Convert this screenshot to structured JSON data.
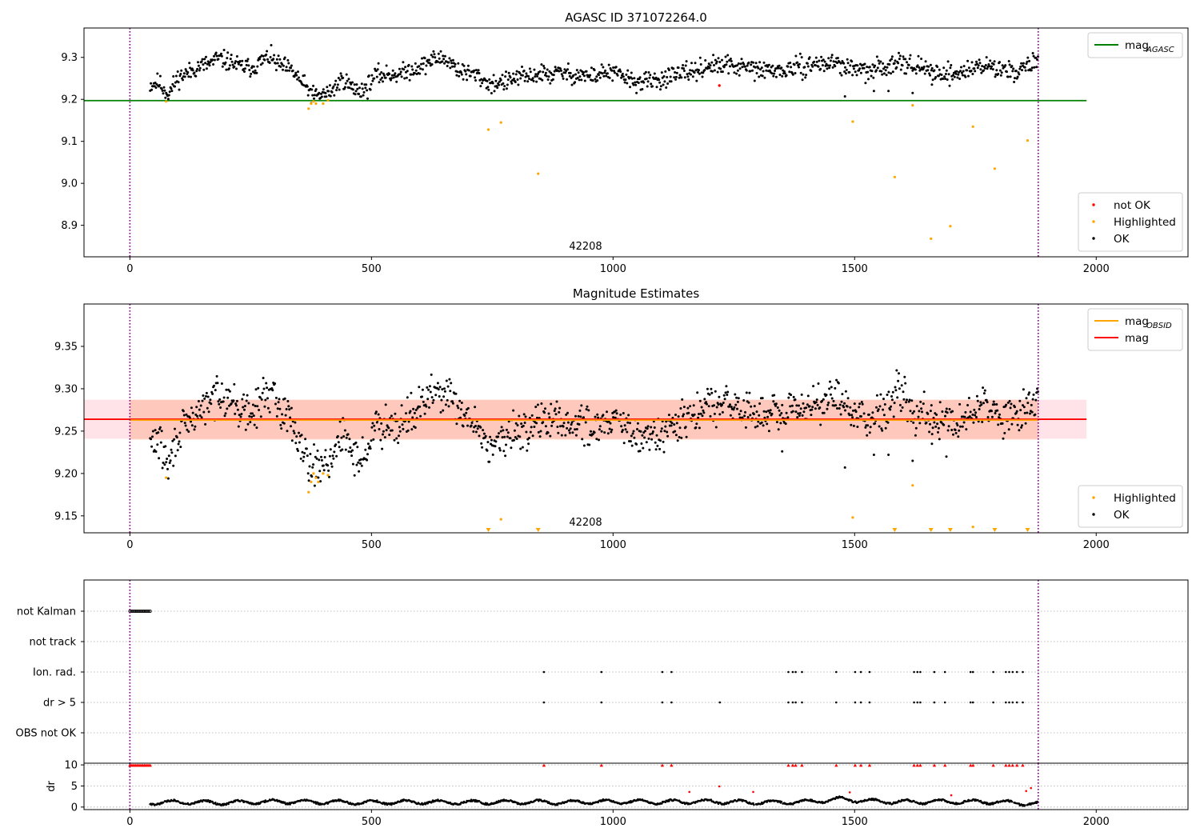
{
  "figure": {
    "colors": {
      "ok": "#000000",
      "highlighted": "#ffa500",
      "not_ok": "#ff0000",
      "mag_agasc_line": "#008000",
      "mag_obsid_line": "#ffa500",
      "mag_line": "#ff0000",
      "boundary": "#800080"
    }
  },
  "chart_data": [
    {
      "type": "scatter",
      "title": "AGASC ID 371072264.0",
      "xlabel": "",
      "ylabel": "",
      "xlim": [
        -95,
        2190
      ],
      "ylim": [
        8.825,
        9.37
      ],
      "xticks": [
        0,
        500,
        1000,
        1500,
        2000
      ],
      "yticks": [
        8.9,
        9.0,
        9.1,
        9.2,
        9.3
      ],
      "xtick_labels": [
        "0",
        "500",
        "1000",
        "1500",
        "2000"
      ],
      "ytick_labels": [
        "8.9",
        "9.0",
        "9.1",
        "9.2",
        "9.3"
      ],
      "obsid_label": "42208",
      "obs_boundaries": [
        0,
        1880
      ],
      "reference_lines": [
        {
          "name": "mag_AGASC",
          "label_main": "mag",
          "label_sub": "AGASC",
          "y": 9.197,
          "x": [
            -95,
            1980
          ]
        }
      ],
      "series": [
        {
          "name": "not OK",
          "color": "#ff0000",
          "points": [
            [
              1220,
              9.233
            ]
          ]
        },
        {
          "name": "Highlighted",
          "color": "#ffa500",
          "points": [
            [
              75,
              9.195
            ],
            [
              370,
              9.178
            ],
            [
              375,
              9.19
            ],
            [
              380,
              9.195
            ],
            [
              385,
              9.19
            ],
            [
              400,
              9.19
            ],
            [
              410,
              9.198
            ],
            [
              742,
              9.128
            ],
            [
              768,
              9.145
            ],
            [
              845,
              9.023
            ],
            [
              1496,
              9.147
            ],
            [
              1583,
              9.015
            ],
            [
              1620,
              9.186
            ],
            [
              1658,
              8.868
            ],
            [
              1698,
              8.898
            ],
            [
              1745,
              9.135
            ],
            [
              1790,
              9.035
            ],
            [
              1858,
              9.102
            ]
          ]
        },
        {
          "name": "OK",
          "color": "#000000",
          "points": []
        }
      ],
      "ok_trend": [
        [
          42,
          9.235
        ],
        [
          60,
          9.238
        ],
        [
          80,
          9.215
        ],
        [
          100,
          9.25
        ],
        [
          120,
          9.265
        ],
        [
          150,
          9.28
        ],
        [
          180,
          9.295
        ],
        [
          210,
          9.29
        ],
        [
          230,
          9.275
        ],
        [
          260,
          9.28
        ],
        [
          290,
          9.302
        ],
        [
          310,
          9.28
        ],
        [
          340,
          9.265
        ],
        [
          360,
          9.232
        ],
        [
          380,
          9.21
        ],
        [
          410,
          9.212
        ],
        [
          440,
          9.25
        ],
        [
          460,
          9.225
        ],
        [
          490,
          9.225
        ],
        [
          510,
          9.26
        ],
        [
          540,
          9.258
        ],
        [
          580,
          9.268
        ],
        [
          620,
          9.29
        ],
        [
          650,
          9.3
        ],
        [
          680,
          9.27
        ],
        [
          720,
          9.255
        ],
        [
          750,
          9.235
        ],
        [
          800,
          9.25
        ],
        [
          850,
          9.26
        ],
        [
          900,
          9.262
        ],
        [
          950,
          9.255
        ],
        [
          1000,
          9.265
        ],
        [
          1030,
          9.248
        ],
        [
          1060,
          9.24
        ],
        [
          1100,
          9.248
        ],
        [
          1150,
          9.262
        ],
        [
          1200,
          9.28
        ],
        [
          1250,
          9.28
        ],
        [
          1300,
          9.27
        ],
        [
          1350,
          9.268
        ],
        [
          1400,
          9.28
        ],
        [
          1450,
          9.288
        ],
        [
          1480,
          9.28
        ],
        [
          1520,
          9.265
        ],
        [
          1560,
          9.275
        ],
        [
          1590,
          9.295
        ],
        [
          1630,
          9.275
        ],
        [
          1680,
          9.262
        ],
        [
          1720,
          9.262
        ],
        [
          1760,
          9.282
        ],
        [
          1800,
          9.272
        ],
        [
          1840,
          9.268
        ],
        [
          1880,
          9.292
        ]
      ],
      "ok_spread": 0.011,
      "ok_outliers": [
        [
          1480,
          9.207
        ],
        [
          1540,
          9.22
        ],
        [
          1570,
          9.22
        ],
        [
          1620,
          9.215
        ],
        [
          1660,
          9.235
        ]
      ],
      "legends": [
        {
          "position": "upper-right",
          "entries": [
            {
              "kind": "line",
              "label_main": "mag",
              "label_sub": "AGASC",
              "color": "#008000"
            }
          ]
        },
        {
          "position": "lower-right",
          "entries": [
            {
              "kind": "point",
              "label": "not OK",
              "color": "#ff0000"
            },
            {
              "kind": "point",
              "label": "Highlighted",
              "color": "#ffa500"
            },
            {
              "kind": "point",
              "label": "OK",
              "color": "#000000"
            }
          ]
        }
      ],
      "grid": false
    },
    {
      "type": "scatter",
      "title": "Magnitude Estimates",
      "xlabel": "",
      "ylabel": "",
      "xlim": [
        -95,
        2190
      ],
      "ylim": [
        9.13,
        9.4
      ],
      "xticks": [
        0,
        500,
        1000,
        1500,
        2000
      ],
      "yticks": [
        9.15,
        9.2,
        9.25,
        9.3,
        9.35
      ],
      "xtick_labels": [
        "0",
        "500",
        "1000",
        "1500",
        "2000"
      ],
      "ytick_labels": [
        "9.15",
        "9.20",
        "9.25",
        "9.30",
        "9.35"
      ],
      "obsid_label": "42208",
      "obs_boundaries": [
        0,
        1880
      ],
      "bands": [
        {
          "name": "mag_band",
          "y": [
            9.241,
            9.287
          ],
          "x": [
            -95,
            1980
          ],
          "color": "#ffc0cb"
        },
        {
          "name": "mag_obsid_band",
          "y": [
            9.24,
            9.287
          ],
          "x": [
            0,
            1880
          ],
          "color": "#ffa07a"
        }
      ],
      "reference_lines": [
        {
          "name": "mag",
          "label_main": "mag",
          "y": 9.264,
          "x": [
            -95,
            1980
          ],
          "color": "#ff0000"
        },
        {
          "name": "mag_OBSID",
          "label_main": "mag",
          "label_sub": "OBSID",
          "y": 9.263,
          "x": [
            0,
            1880
          ],
          "color": "#ffa500"
        }
      ],
      "series": [
        {
          "name": "Highlighted",
          "color": "#ffa500",
          "points": [
            [
              75,
              9.195
            ],
            [
              370,
              9.178
            ],
            [
              375,
              9.19
            ],
            [
              380,
              9.2
            ],
            [
              385,
              9.195
            ],
            [
              390,
              9.19
            ],
            [
              400,
              9.2
            ],
            [
              410,
              9.198
            ],
            [
              768,
              9.146
            ],
            [
              1496,
              9.148
            ],
            [
              1620,
              9.186
            ],
            [
              1745,
              9.137
            ]
          ]
        },
        {
          "name": "OK",
          "color": "#000000",
          "points": []
        }
      ],
      "clipped_markers": [
        742,
        845,
        1583,
        1658,
        1698,
        1790,
        1858
      ],
      "ok_trend": [
        [
          42,
          9.235
        ],
        [
          60,
          9.238
        ],
        [
          80,
          9.21
        ],
        [
          100,
          9.245
        ],
        [
          120,
          9.26
        ],
        [
          150,
          9.275
        ],
        [
          180,
          9.295
        ],
        [
          210,
          9.29
        ],
        [
          230,
          9.27
        ],
        [
          260,
          9.275
        ],
        [
          290,
          9.3
        ],
        [
          310,
          9.275
        ],
        [
          340,
          9.26
        ],
        [
          360,
          9.225
        ],
        [
          380,
          9.21
        ],
        [
          410,
          9.212
        ],
        [
          440,
          9.245
        ],
        [
          460,
          9.225
        ],
        [
          490,
          9.22
        ],
        [
          510,
          9.26
        ],
        [
          540,
          9.258
        ],
        [
          580,
          9.268
        ],
        [
          620,
          9.29
        ],
        [
          650,
          9.3
        ],
        [
          680,
          9.27
        ],
        [
          720,
          9.255
        ],
        [
          750,
          9.23
        ],
        [
          800,
          9.25
        ],
        [
          850,
          9.262
        ],
        [
          900,
          9.262
        ],
        [
          950,
          9.255
        ],
        [
          1000,
          9.265
        ],
        [
          1030,
          9.248
        ],
        [
          1060,
          9.24
        ],
        [
          1100,
          9.248
        ],
        [
          1150,
          9.262
        ],
        [
          1200,
          9.28
        ],
        [
          1250,
          9.28
        ],
        [
          1300,
          9.27
        ],
        [
          1350,
          9.268
        ],
        [
          1400,
          9.28
        ],
        [
          1450,
          9.29
        ],
        [
          1480,
          9.28
        ],
        [
          1520,
          9.265
        ],
        [
          1560,
          9.275
        ],
        [
          1590,
          9.3
        ],
        [
          1630,
          9.272
        ],
        [
          1680,
          9.258
        ],
        [
          1720,
          9.262
        ],
        [
          1760,
          9.28
        ],
        [
          1800,
          9.27
        ],
        [
          1840,
          9.268
        ],
        [
          1880,
          9.292
        ]
      ],
      "ok_spread": 0.011,
      "ok_outliers": [
        [
          1480,
          9.207
        ],
        [
          1540,
          9.222
        ],
        [
          1570,
          9.222
        ],
        [
          1620,
          9.215
        ],
        [
          1660,
          9.235
        ],
        [
          1690,
          9.22
        ],
        [
          1350,
          9.226
        ]
      ],
      "legends": [
        {
          "position": "upper-right",
          "entries": [
            {
              "kind": "line",
              "label_main": "mag",
              "label_sub": "OBSID",
              "color": "#ffa500"
            },
            {
              "kind": "line",
              "label_main": "mag",
              "color": "#ff0000"
            }
          ]
        },
        {
          "position": "lower-right",
          "entries": [
            {
              "kind": "point",
              "label": "Highlighted",
              "color": "#ffa500"
            },
            {
              "kind": "point",
              "label": "OK",
              "color": "#000000"
            }
          ]
        }
      ],
      "grid": false
    },
    {
      "type": "scatter",
      "title": "",
      "xlabel": "",
      "ylabel": "",
      "xlim": [
        -95,
        2190
      ],
      "categories": [
        "not Kalman",
        "not track",
        "Ion. rad.",
        "dr > 5",
        "OBS not OK"
      ],
      "obs_boundaries": [
        0,
        1880
      ],
      "flags": {
        "not Kalman": {
          "x_range": [
            0,
            42
          ],
          "step": 3
        },
        "not track": {
          "x": []
        },
        "Ion. rad.": {
          "x": [
            857,
            976,
            1102,
            1121,
            1363,
            1372,
            1378,
            1391,
            1462,
            1501,
            1513,
            1531,
            1623,
            1630,
            1636,
            1665,
            1687,
            1740,
            1745,
            1787,
            1813,
            1820,
            1827,
            1836,
            1848
          ]
        },
        "dr > 5": {
          "x": [
            857,
            976,
            1102,
            1121,
            1221,
            1363,
            1372,
            1378,
            1391,
            1462,
            1501,
            1513,
            1531,
            1623,
            1630,
            1636,
            1665,
            1687,
            1740,
            1745,
            1787,
            1813,
            1820,
            1827,
            1836,
            1848
          ]
        },
        "OBS not OK": {
          "x": []
        }
      },
      "grid": "horizontal-dotted"
    },
    {
      "type": "scatter",
      "title": "",
      "xlabel": "",
      "ylabel": "dr",
      "xlim": [
        -95,
        2190
      ],
      "ylim": [
        -0.6,
        10.4
      ],
      "yticks": [
        0,
        5,
        10
      ],
      "ytick_labels": [
        "0",
        "5",
        "10"
      ],
      "xticks": [
        0,
        500,
        1000,
        1500,
        2000
      ],
      "xtick_labels": [
        "0",
        "500",
        "1000",
        "1500",
        "2000"
      ],
      "obs_boundaries": [
        0,
        1880
      ],
      "clipped_x": [
        0,
        3,
        6,
        9,
        12,
        15,
        18,
        21,
        24,
        27,
        30,
        33,
        36,
        39,
        42,
        857,
        976,
        1102,
        1121,
        1363,
        1372,
        1378,
        1391,
        1462,
        1501,
        1513,
        1531,
        1623,
        1630,
        1636,
        1665,
        1687,
        1740,
        1745,
        1787,
        1813,
        1820,
        1827,
        1836,
        1848
      ],
      "high_points": [
        [
          1158,
          3.6
        ],
        [
          1220,
          4.9
        ],
        [
          1290,
          3.6
        ],
        [
          1490,
          3.5
        ],
        [
          1700,
          2.8
        ],
        [
          1855,
          3.8
        ],
        [
          1865,
          4.5
        ]
      ],
      "dr_trend": [
        [
          42,
          1.0
        ],
        [
          100,
          1.2
        ],
        [
          200,
          1.0
        ],
        [
          300,
          1.3
        ],
        [
          400,
          1.2
        ],
        [
          500,
          1.1
        ],
        [
          600,
          1.2
        ],
        [
          700,
          1.1
        ],
        [
          800,
          1.2
        ],
        [
          900,
          1.1
        ],
        [
          1000,
          1.3
        ],
        [
          1100,
          1.2
        ],
        [
          1200,
          1.3
        ],
        [
          1300,
          1.1
        ],
        [
          1400,
          1.2
        ],
        [
          1470,
          1.9
        ],
        [
          1530,
          1.4
        ],
        [
          1600,
          1.2
        ],
        [
          1700,
          1.3
        ],
        [
          1800,
          1.2
        ],
        [
          1880,
          0.7
        ]
      ],
      "dr_spread": 0.45,
      "grid": "horizontal-dotted"
    }
  ]
}
